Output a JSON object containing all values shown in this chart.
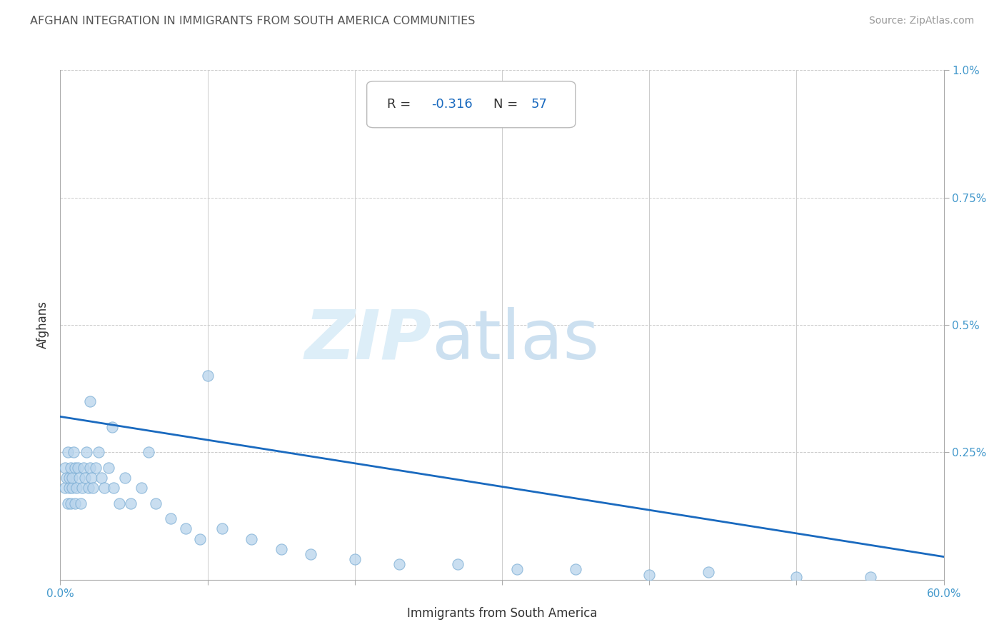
{
  "title": "AFGHAN INTEGRATION IN IMMIGRANTS FROM SOUTH AMERICA COMMUNITIES",
  "source": "Source: ZipAtlas.com",
  "xlabel": "Immigrants from South America",
  "ylabel": "Afghans",
  "r_value": -0.316,
  "n_value": 57,
  "xlim": [
    0,
    0.6
  ],
  "ylim": [
    0,
    0.01
  ],
  "scatter_x": [
    0.003,
    0.003,
    0.004,
    0.005,
    0.005,
    0.006,
    0.006,
    0.007,
    0.007,
    0.008,
    0.008,
    0.009,
    0.01,
    0.01,
    0.011,
    0.012,
    0.013,
    0.014,
    0.015,
    0.016,
    0.017,
    0.018,
    0.019,
    0.02,
    0.021,
    0.022,
    0.024,
    0.026,
    0.028,
    0.03,
    0.033,
    0.036,
    0.04,
    0.044,
    0.048,
    0.055,
    0.065,
    0.075,
    0.085,
    0.095,
    0.11,
    0.13,
    0.15,
    0.17,
    0.2,
    0.23,
    0.27,
    0.31,
    0.35,
    0.4,
    0.44,
    0.5,
    0.55,
    0.02,
    0.035,
    0.06,
    0.1
  ],
  "scatter_y": [
    0.0022,
    0.0018,
    0.002,
    0.0015,
    0.0025,
    0.002,
    0.0018,
    0.0022,
    0.0015,
    0.0018,
    0.002,
    0.0025,
    0.0022,
    0.0015,
    0.0018,
    0.0022,
    0.002,
    0.0015,
    0.0018,
    0.0022,
    0.002,
    0.0025,
    0.0018,
    0.0022,
    0.002,
    0.0018,
    0.0022,
    0.0025,
    0.002,
    0.0018,
    0.0022,
    0.0018,
    0.0015,
    0.002,
    0.0015,
    0.0018,
    0.0015,
    0.0012,
    0.001,
    0.0008,
    0.001,
    0.0008,
    0.0006,
    0.0005,
    0.0004,
    0.0003,
    0.0003,
    0.0002,
    0.0002,
    0.0001,
    0.00015,
    5e-05,
    5e-05,
    0.0035,
    0.003,
    0.0025,
    0.004
  ],
  "trend_y_start": 0.0032,
  "trend_y_end": 0.00045,
  "scatter_color": "#b8d4ec",
  "scatter_edge_color": "#7aadd4",
  "trend_color": "#1a6abf",
  "background_color": "#ffffff",
  "grid_color": "#cccccc",
  "title_color": "#555555",
  "axis_label_color": "#333333",
  "tick_color": "#4499cc",
  "source_color": "#999999"
}
